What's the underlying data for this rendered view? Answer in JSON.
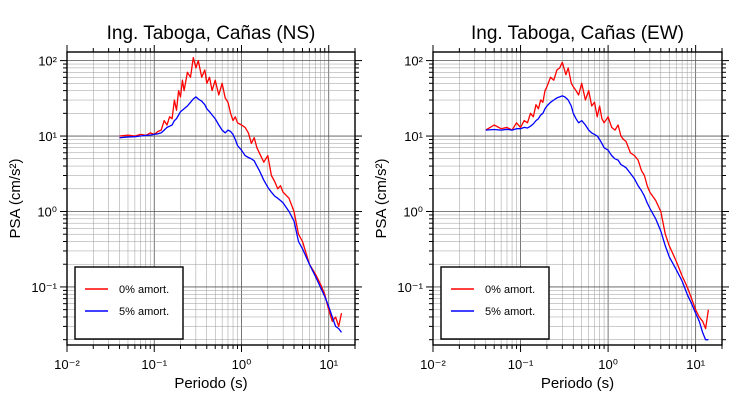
{
  "chart_data": [
    {
      "type": "line",
      "title": "Ing. Taboga, Cañas (NS)",
      "xlabel": "Periodo (s)",
      "ylabel": "PSA (cm/s²)",
      "xscale": "log",
      "yscale": "log",
      "xlim": [
        0.01,
        20
      ],
      "ylim": [
        0.017,
        130
      ],
      "grid": true,
      "legend_position": "bottom-left",
      "x_tick_labels": [
        "10⁻²",
        "10⁻¹",
        "10⁰",
        "10¹"
      ],
      "y_tick_labels": [
        "10⁻¹",
        "10⁰",
        "10¹",
        "10²"
      ],
      "series": [
        {
          "name": "0% amort.",
          "color": "#ff0000",
          "x": [
            0.04,
            0.05,
            0.06,
            0.07,
            0.08,
            0.09,
            0.1,
            0.11,
            0.12,
            0.13,
            0.14,
            0.15,
            0.16,
            0.17,
            0.18,
            0.19,
            0.2,
            0.21,
            0.22,
            0.24,
            0.26,
            0.28,
            0.3,
            0.32,
            0.35,
            0.38,
            0.4,
            0.43,
            0.46,
            0.5,
            0.55,
            0.6,
            0.65,
            0.7,
            0.75,
            0.8,
            0.85,
            0.9,
            1.0,
            1.1,
            1.2,
            1.3,
            1.4,
            1.5,
            1.6,
            1.8,
            2.0,
            2.2,
            2.4,
            2.6,
            2.8,
            3.0,
            3.5,
            4.0,
            4.5,
            5.0,
            6.0,
            7.0,
            8.0,
            9.0,
            10.0,
            11.0,
            12.0,
            13.0,
            14.0
          ],
          "y": [
            10.0,
            10.3,
            10.0,
            10.5,
            10.2,
            11.0,
            10.5,
            11.5,
            12.0,
            16.0,
            14.0,
            18.0,
            17.0,
            30.0,
            22.0,
            40.0,
            33.0,
            55.0,
            40.0,
            70.0,
            60.0,
            110.0,
            80.0,
            100.0,
            60.0,
            75.0,
            50.0,
            60.0,
            40.0,
            55.0,
            35.0,
            50.0,
            32.0,
            28.0,
            20.0,
            16.0,
            18.0,
            15.0,
            14.0,
            13.0,
            11.0,
            8.0,
            9.5,
            7.0,
            6.0,
            4.5,
            5.5,
            3.0,
            2.5,
            2.0,
            2.2,
            1.8,
            1.5,
            1.0,
            0.5,
            0.4,
            0.2,
            0.15,
            0.11,
            0.08,
            0.05,
            0.035,
            0.04,
            0.03,
            0.045
          ]
        },
        {
          "name": "5% amort.",
          "color": "#0000ff",
          "x": [
            0.04,
            0.05,
            0.06,
            0.07,
            0.08,
            0.09,
            0.1,
            0.11,
            0.12,
            0.13,
            0.14,
            0.15,
            0.16,
            0.17,
            0.18,
            0.19,
            0.2,
            0.22,
            0.24,
            0.26,
            0.28,
            0.3,
            0.32,
            0.35,
            0.38,
            0.4,
            0.43,
            0.46,
            0.5,
            0.55,
            0.6,
            0.65,
            0.7,
            0.75,
            0.8,
            0.85,
            0.9,
            1.0,
            1.1,
            1.2,
            1.3,
            1.4,
            1.5,
            1.6,
            1.8,
            2.0,
            2.2,
            2.4,
            2.6,
            2.8,
            3.0,
            3.5,
            4.0,
            4.5,
            5.0,
            6.0,
            7.0,
            8.0,
            9.0,
            10.0,
            11.0,
            12.0,
            13.0,
            14.0
          ],
          "y": [
            9.5,
            9.7,
            9.8,
            10.0,
            10.2,
            10.3,
            10.5,
            10.7,
            11.0,
            12.0,
            13.0,
            13.5,
            14.0,
            16.0,
            17.0,
            19.0,
            21.0,
            23.0,
            25.0,
            28.0,
            31.0,
            33.0,
            31.0,
            29.0,
            26.0,
            23.0,
            21.0,
            19.0,
            17.0,
            14.0,
            12.0,
            11.0,
            12.0,
            11.5,
            10.5,
            9.0,
            7.5,
            6.5,
            5.5,
            5.2,
            5.0,
            4.7,
            4.0,
            3.5,
            2.6,
            2.1,
            1.8,
            1.6,
            1.5,
            1.4,
            1.3,
            1.0,
            0.75,
            0.4,
            0.32,
            0.2,
            0.14,
            0.1,
            0.075,
            0.055,
            0.04,
            0.03,
            0.028,
            0.025
          ]
        }
      ]
    },
    {
      "type": "line",
      "title": "Ing. Taboga, Cañas (EW)",
      "xlabel": "Periodo (s)",
      "ylabel": "PSA (cm/s²)",
      "xscale": "log",
      "yscale": "log",
      "xlim": [
        0.01,
        20
      ],
      "ylim": [
        0.017,
        130
      ],
      "grid": true,
      "legend_position": "bottom-left",
      "x_tick_labels": [
        "10⁻²",
        "10⁻¹",
        "10⁰",
        "10¹"
      ],
      "y_tick_labels": [
        "10⁻¹",
        "10⁰",
        "10¹",
        "10²"
      ],
      "series": [
        {
          "name": "0% amort.",
          "color": "#ff0000",
          "x": [
            0.04,
            0.05,
            0.06,
            0.07,
            0.08,
            0.09,
            0.1,
            0.11,
            0.12,
            0.13,
            0.14,
            0.15,
            0.16,
            0.17,
            0.18,
            0.19,
            0.2,
            0.22,
            0.24,
            0.26,
            0.28,
            0.3,
            0.33,
            0.35,
            0.38,
            0.4,
            0.43,
            0.46,
            0.5,
            0.55,
            0.6,
            0.65,
            0.7,
            0.75,
            0.8,
            0.85,
            0.9,
            1.0,
            1.1,
            1.2,
            1.3,
            1.4,
            1.5,
            1.6,
            1.8,
            2.0,
            2.2,
            2.4,
            2.6,
            2.8,
            3.0,
            3.5,
            4.0,
            4.5,
            5.0,
            6.0,
            7.0,
            8.0,
            9.0,
            10.0,
            11.0,
            12.0,
            13.0,
            14.0
          ],
          "y": [
            12.0,
            14.0,
            12.5,
            13.0,
            12.0,
            15.0,
            13.0,
            16.0,
            15.0,
            20.0,
            18.0,
            26.0,
            23.0,
            30.0,
            28.0,
            40.0,
            45.0,
            60.0,
            55.0,
            75.0,
            80.0,
            95.0,
            65.0,
            80.0,
            50.0,
            45.0,
            40.0,
            35.0,
            50.0,
            30.0,
            40.0,
            25.0,
            28.0,
            18.0,
            25.0,
            17.0,
            15.0,
            18.0,
            13.0,
            12.0,
            14.0,
            10.0,
            9.0,
            8.5,
            6.0,
            5.5,
            4.8,
            3.5,
            3.0,
            2.2,
            1.8,
            1.4,
            1.0,
            0.5,
            0.35,
            0.22,
            0.14,
            0.1,
            0.07,
            0.05,
            0.04,
            0.035,
            0.028,
            0.05
          ]
        },
        {
          "name": "5% amort.",
          "color": "#0000ff",
          "x": [
            0.04,
            0.05,
            0.06,
            0.07,
            0.08,
            0.09,
            0.1,
            0.11,
            0.12,
            0.13,
            0.14,
            0.15,
            0.16,
            0.17,
            0.18,
            0.19,
            0.2,
            0.22,
            0.24,
            0.26,
            0.28,
            0.3,
            0.32,
            0.35,
            0.38,
            0.4,
            0.43,
            0.46,
            0.5,
            0.55,
            0.6,
            0.65,
            0.7,
            0.75,
            0.8,
            0.85,
            0.9,
            1.0,
            1.1,
            1.2,
            1.3,
            1.4,
            1.5,
            1.6,
            1.8,
            2.0,
            2.2,
            2.4,
            2.6,
            2.8,
            3.0,
            3.5,
            4.0,
            4.5,
            5.0,
            6.0,
            7.0,
            8.0,
            9.0,
            10.0,
            11.0,
            12.0,
            13.0,
            14.0
          ],
          "y": [
            12.0,
            12.2,
            12.0,
            12.3,
            12.0,
            12.5,
            12.5,
            13.0,
            12.8,
            13.5,
            14.5,
            16.0,
            17.0,
            19.0,
            20.0,
            23.0,
            25.0,
            28.0,
            30.0,
            32.0,
            33.0,
            34.0,
            33.0,
            30.0,
            25.0,
            20.0,
            17.0,
            15.0,
            16.0,
            14.0,
            12.0,
            11.0,
            10.5,
            10.0,
            9.0,
            8.0,
            7.0,
            6.5,
            5.5,
            5.0,
            4.8,
            4.2,
            4.0,
            3.8,
            3.2,
            2.7,
            2.2,
            1.9,
            1.6,
            1.3,
            1.1,
            0.8,
            0.55,
            0.35,
            0.25,
            0.17,
            0.12,
            0.08,
            0.06,
            0.045,
            0.035,
            0.025,
            0.02,
            0.02
          ]
        }
      ]
    }
  ]
}
